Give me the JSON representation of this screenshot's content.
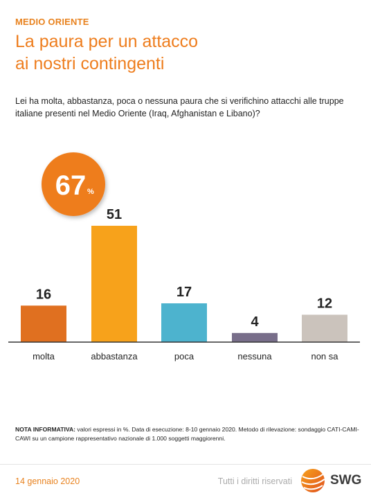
{
  "header": {
    "section": "MEDIO ORIENTE",
    "title_line1": "La paura per un attacco",
    "title_line2": "ai nostri contingenti"
  },
  "question": "Lei ha molta, abbastanza, poca o nessuna paura che si verifichino attacchi alle truppe italiane presenti nel Medio Oriente (Iraq, Afghanistan e Libano)?",
  "badge": {
    "value": "67",
    "unit": "%",
    "color": "#ee7d1d"
  },
  "chart_data": {
    "type": "bar",
    "categories": [
      "molta",
      "abbastanza",
      "poca",
      "nessuna",
      "non sa"
    ],
    "values": [
      16,
      51,
      17,
      4,
      12
    ],
    "colors": [
      "#e07020",
      "#f7a21b",
      "#4db3ce",
      "#786e8a",
      "#cbc3bc"
    ],
    "ylim": [
      0,
      51
    ],
    "grid": false,
    "legend": "none"
  },
  "note": {
    "label": "NOTA INFORMATIVA:",
    "text": " valori espressi in %. Data di esecuzione: 8-10 gennaio 2020. Metodo di rilevazione: sondaggio CATI-CAMI-CAWI su un campione rappresentativo nazionale di 1.000 soggetti maggiorenni."
  },
  "footer": {
    "date": "14 gennaio 2020",
    "rights": "Tutti i diritti riservati",
    "logo_text": "SWG"
  }
}
